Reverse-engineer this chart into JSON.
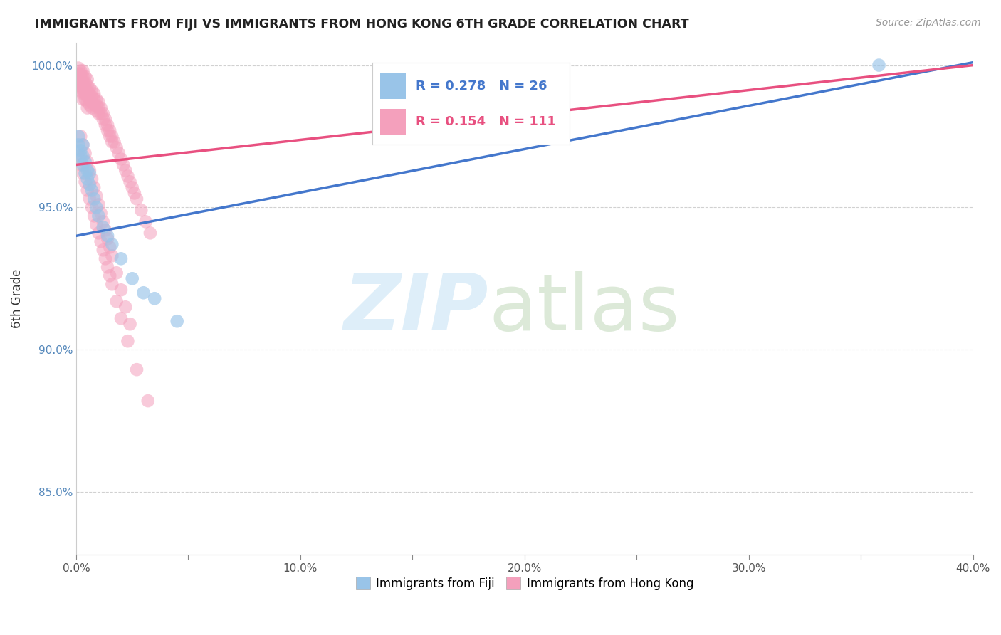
{
  "title": "IMMIGRANTS FROM FIJI VS IMMIGRANTS FROM HONG KONG 6TH GRADE CORRELATION CHART",
  "source": "Source: ZipAtlas.com",
  "ylabel": "6th Grade",
  "xlim": [
    0.0,
    0.4
  ],
  "ylim": [
    0.828,
    1.008
  ],
  "xticks": [
    0.0,
    0.05,
    0.1,
    0.15,
    0.2,
    0.25,
    0.3,
    0.35,
    0.4
  ],
  "xticklabels": [
    "0.0%",
    "",
    "10.0%",
    "",
    "20.0%",
    "",
    "30.0%",
    "",
    "40.0%"
  ],
  "yticks": [
    0.85,
    0.9,
    0.95,
    1.0
  ],
  "yticklabels": [
    "85.0%",
    "90.0%",
    "95.0%",
    "100.0%"
  ],
  "fiji_color": "#99C4E8",
  "hk_color": "#F4A0BC",
  "fiji_line_color": "#4477CC",
  "hk_line_color": "#E85080",
  "fiji_R": 0.278,
  "fiji_N": 26,
  "hk_R": 0.154,
  "hk_N": 111,
  "legend_label_fiji": "Immigrants from Fiji",
  "legend_label_hk": "Immigrants from Hong Kong",
  "fiji_trend_x": [
    0.0,
    0.4
  ],
  "fiji_trend_y": [
    0.94,
    1.001
  ],
  "hk_trend_x": [
    0.0,
    0.4
  ],
  "hk_trend_y": [
    0.965,
    1.0
  ],
  "fiji_x": [
    0.001,
    0.001,
    0.002,
    0.002,
    0.003,
    0.003,
    0.003,
    0.004,
    0.004,
    0.005,
    0.005,
    0.006,
    0.006,
    0.007,
    0.008,
    0.009,
    0.01,
    0.012,
    0.014,
    0.016,
    0.02,
    0.025,
    0.03,
    0.035,
    0.045,
    0.358
  ],
  "fiji_y": [
    0.975,
    0.972,
    0.97,
    0.968,
    0.972,
    0.968,
    0.965,
    0.966,
    0.962,
    0.963,
    0.96,
    0.958,
    0.962,
    0.956,
    0.953,
    0.95,
    0.947,
    0.943,
    0.94,
    0.937,
    0.932,
    0.925,
    0.92,
    0.918,
    0.91,
    1.0
  ],
  "hk_x": [
    0.001,
    0.001,
    0.001,
    0.001,
    0.001,
    0.002,
    0.002,
    0.002,
    0.002,
    0.002,
    0.002,
    0.003,
    0.003,
    0.003,
    0.003,
    0.003,
    0.003,
    0.004,
    0.004,
    0.004,
    0.004,
    0.004,
    0.005,
    0.005,
    0.005,
    0.005,
    0.005,
    0.005,
    0.006,
    0.006,
    0.006,
    0.006,
    0.007,
    0.007,
    0.007,
    0.007,
    0.008,
    0.008,
    0.008,
    0.009,
    0.009,
    0.009,
    0.01,
    0.01,
    0.01,
    0.011,
    0.011,
    0.012,
    0.012,
    0.013,
    0.013,
    0.014,
    0.014,
    0.015,
    0.015,
    0.016,
    0.016,
    0.017,
    0.018,
    0.019,
    0.02,
    0.021,
    0.022,
    0.023,
    0.024,
    0.025,
    0.026,
    0.027,
    0.029,
    0.031,
    0.033,
    0.002,
    0.003,
    0.004,
    0.005,
    0.006,
    0.007,
    0.008,
    0.009,
    0.01,
    0.011,
    0.012,
    0.013,
    0.014,
    0.015,
    0.016,
    0.018,
    0.02,
    0.022,
    0.024,
    0.001,
    0.002,
    0.003,
    0.004,
    0.005,
    0.006,
    0.007,
    0.008,
    0.009,
    0.01,
    0.011,
    0.012,
    0.013,
    0.014,
    0.015,
    0.016,
    0.018,
    0.02,
    0.023,
    0.027,
    0.032
  ],
  "hk_y": [
    0.999,
    0.997,
    0.996,
    0.994,
    0.993,
    0.998,
    0.997,
    0.996,
    0.994,
    0.992,
    0.991,
    0.998,
    0.996,
    0.994,
    0.992,
    0.99,
    0.988,
    0.996,
    0.994,
    0.992,
    0.99,
    0.988,
    0.995,
    0.993,
    0.991,
    0.989,
    0.987,
    0.985,
    0.992,
    0.99,
    0.988,
    0.986,
    0.991,
    0.989,
    0.987,
    0.985,
    0.99,
    0.988,
    0.986,
    0.988,
    0.986,
    0.984,
    0.987,
    0.985,
    0.983,
    0.985,
    0.983,
    0.983,
    0.981,
    0.981,
    0.979,
    0.979,
    0.977,
    0.977,
    0.975,
    0.975,
    0.973,
    0.973,
    0.971,
    0.969,
    0.967,
    0.965,
    0.963,
    0.961,
    0.959,
    0.957,
    0.955,
    0.953,
    0.949,
    0.945,
    0.941,
    0.975,
    0.972,
    0.969,
    0.966,
    0.963,
    0.96,
    0.957,
    0.954,
    0.951,
    0.948,
    0.945,
    0.942,
    0.939,
    0.936,
    0.933,
    0.927,
    0.921,
    0.915,
    0.909,
    0.968,
    0.965,
    0.962,
    0.959,
    0.956,
    0.953,
    0.95,
    0.947,
    0.944,
    0.941,
    0.938,
    0.935,
    0.932,
    0.929,
    0.926,
    0.923,
    0.917,
    0.911,
    0.903,
    0.893,
    0.882
  ]
}
